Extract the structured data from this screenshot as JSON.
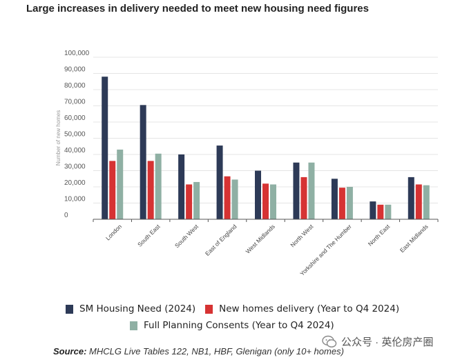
{
  "header": {
    "title": "Large increases in delivery needed to meet new housing need figures"
  },
  "chart_data": {
    "type": "bar",
    "ylabel": "Number of new homes",
    "ylim": [
      0,
      100000
    ],
    "y_ticks": [
      "0",
      "10,000",
      "20,000",
      "30,000",
      "40,000",
      "50,000",
      "60,000",
      "70,000",
      "80,000",
      "90,000",
      "100,000"
    ],
    "categories": [
      "London",
      "South East",
      "South West",
      "East of England",
      "West Midlands",
      "North West",
      "Yorkshire and The Humber",
      "North East",
      "East Midlands"
    ],
    "series": [
      {
        "name": "SM Housing Need (2024)",
        "color": "#2d3a57",
        "values": [
          88000,
          70500,
          40000,
          45500,
          30000,
          35000,
          25000,
          11000,
          26000
        ]
      },
      {
        "name": "New homes delivery (Year to Q4 2024)",
        "color": "#d63333",
        "values": [
          36000,
          36000,
          21500,
          26500,
          22000,
          26000,
          19500,
          9000,
          21500
        ]
      },
      {
        "name": "Full Planning Consents (Year to Q4 2024)",
        "color": "#8fb0a4",
        "values": [
          43000,
          40500,
          23000,
          24500,
          21500,
          35000,
          20000,
          9000,
          21000
        ]
      }
    ],
    "grid": true,
    "legend_position": "bottom"
  },
  "footer": {
    "source_label": "Source:",
    "source_text": " MHCLG Live Tables 122, NB1, HBF, Glenigan (only 10+ homes)",
    "watermark": "公众号 · 英伦房产圈"
  }
}
